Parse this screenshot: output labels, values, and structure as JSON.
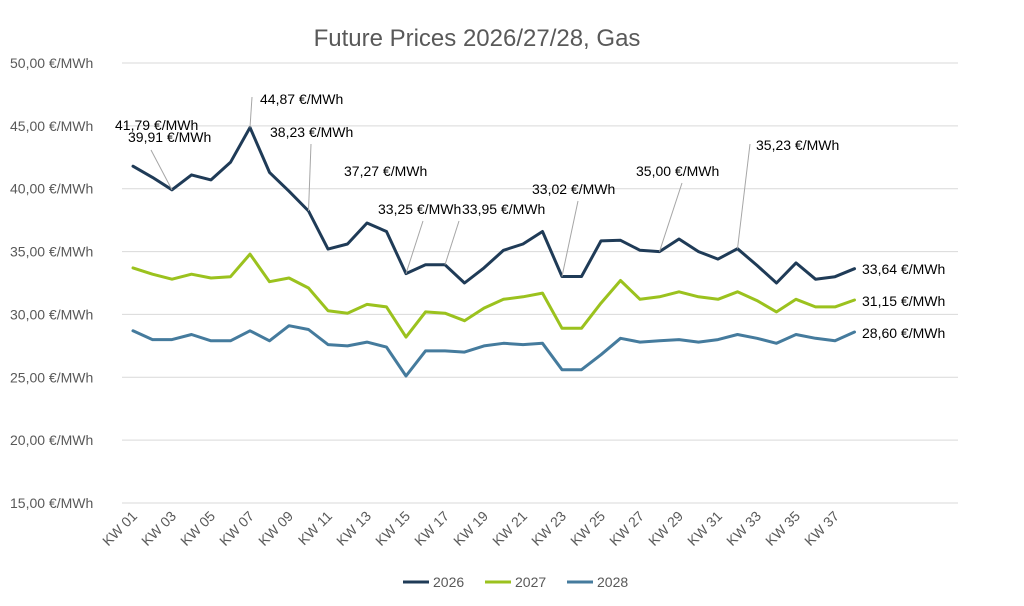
{
  "chart_data": {
    "type": "line",
    "title": "Future Prices 2026/27/28, Gas",
    "xlabel": "",
    "ylabel": "",
    "ylim": [
      15,
      50
    ],
    "grid": true,
    "legend_position": "bottom",
    "y_ticks": [
      {
        "value": 15,
        "label": "15,00 €/MWh"
      },
      {
        "value": 20,
        "label": "20,00 €/MWh"
      },
      {
        "value": 25,
        "label": "25,00 €/MWh"
      },
      {
        "value": 30,
        "label": "30,00 €/MWh"
      },
      {
        "value": 35,
        "label": "35,00 €/MWh"
      },
      {
        "value": 40,
        "label": "40,00 €/MWh"
      },
      {
        "value": 45,
        "label": "45,00 €/MWh"
      },
      {
        "value": 50,
        "label": "50,00 €/MWh"
      }
    ],
    "categories": [
      "KW 01",
      "KW 02",
      "KW 03",
      "KW 04",
      "KW 05",
      "KW 06",
      "KW 07",
      "KW 08",
      "KW 09",
      "KW 10",
      "KW 11",
      "KW 12",
      "KW 13",
      "KW 14",
      "KW 15",
      "KW 16",
      "KW 17",
      "KW 18",
      "KW 19",
      "KW 20",
      "KW 21",
      "KW 22",
      "KW 23",
      "KW 24",
      "KW 25",
      "KW 26",
      "KW 27",
      "KW 28",
      "KW 29",
      "KW 30",
      "KW 31",
      "KW 32",
      "KW 33",
      "KW 34",
      "KW 35",
      "KW 36",
      "KW 37",
      "KW 38"
    ],
    "x_tick_labels": [
      "KW 01",
      "KW 03",
      "KW 05",
      "KW 07",
      "KW 09",
      "KW 11",
      "KW 13",
      "KW 15",
      "KW 17",
      "KW 19",
      "KW 21",
      "KW 23",
      "KW 25",
      "KW 27",
      "KW 29",
      "KW 31",
      "KW 33",
      "KW 35",
      "KW 37"
    ],
    "series": [
      {
        "name": "2026",
        "color": "#1f3b57",
        "values": [
          41.79,
          40.9,
          39.91,
          41.1,
          40.7,
          42.1,
          44.87,
          41.3,
          39.8,
          38.23,
          35.2,
          35.6,
          37.27,
          36.6,
          33.25,
          33.95,
          33.95,
          32.5,
          33.7,
          35.1,
          35.6,
          36.6,
          33.02,
          33.02,
          35.85,
          35.9,
          35.1,
          35.0,
          36.0,
          35.0,
          34.4,
          35.23,
          33.9,
          32.5,
          34.1,
          32.8,
          33.0,
          33.64
        ]
      },
      {
        "name": "2027",
        "color": "#9bc21e",
        "values": [
          33.7,
          33.2,
          32.8,
          33.2,
          32.9,
          33.0,
          34.8,
          32.6,
          32.9,
          32.1,
          30.3,
          30.1,
          30.8,
          30.6,
          28.2,
          30.2,
          30.1,
          29.5,
          30.5,
          31.2,
          31.4,
          31.7,
          28.9,
          28.9,
          30.9,
          32.7,
          31.2,
          31.4,
          31.8,
          31.4,
          31.2,
          31.8,
          31.1,
          30.2,
          31.2,
          30.6,
          30.6,
          31.15
        ]
      },
      {
        "name": "2028",
        "color": "#457b9d",
        "values": [
          28.7,
          28.0,
          28.0,
          28.4,
          27.9,
          27.9,
          28.7,
          27.9,
          29.1,
          28.8,
          27.6,
          27.5,
          27.8,
          27.4,
          25.1,
          27.1,
          27.1,
          27.0,
          27.5,
          27.7,
          27.6,
          27.7,
          25.6,
          25.6,
          26.8,
          28.1,
          27.8,
          27.9,
          28.0,
          27.8,
          28.0,
          28.4,
          28.1,
          27.7,
          28.4,
          28.1,
          27.9,
          28.6
        ]
      }
    ],
    "annotations": [
      {
        "series": "2026",
        "index": 0,
        "text": "41,79 €/MWh"
      },
      {
        "series": "2026",
        "index": 2,
        "text": "39,91 €/MWh"
      },
      {
        "series": "2026",
        "index": 6,
        "text": "44,87 €/MWh"
      },
      {
        "series": "2026",
        "index": 9,
        "text": "38,23 €/MWh"
      },
      {
        "series": "2026",
        "index": 12,
        "text": "37,27 €/MWh"
      },
      {
        "series": "2026",
        "index": 14,
        "text": "33,25 €/MWh"
      },
      {
        "series": "2026",
        "index": 16,
        "text": "33,95 €/MWh"
      },
      {
        "series": "2026",
        "index": 22,
        "text": "33,02 €/MWh"
      },
      {
        "series": "2026",
        "index": 27,
        "text": "35,00 €/MWh"
      },
      {
        "series": "2026",
        "index": 31,
        "text": "35,23 €/MWh"
      },
      {
        "series": "2026",
        "index": 37,
        "text": "33,64 €/MWh"
      },
      {
        "series": "2027",
        "index": 37,
        "text": "31,15 €/MWh"
      },
      {
        "series": "2028",
        "index": 37,
        "text": "28,60 €/MWh"
      }
    ]
  }
}
